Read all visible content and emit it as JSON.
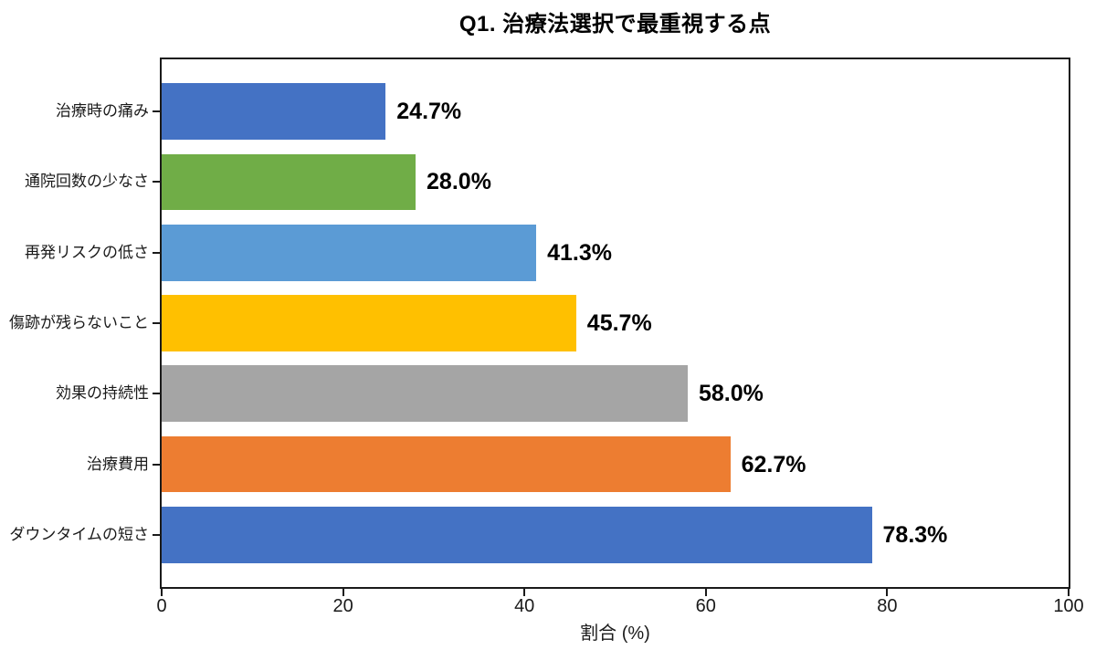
{
  "chart_data": {
    "type": "bar",
    "orientation": "horizontal",
    "title": "Q1. 治療法選択で最重視する点",
    "categories": [
      "治療時の痛み",
      "通院回数の少なさ",
      "再発リスクの低さ",
      "傷跡が残らないこと",
      "効果の持続性",
      "治療費用",
      "ダウンタイムの短さ"
    ],
    "values": [
      24.7,
      28.0,
      41.3,
      45.7,
      58.0,
      62.7,
      78.3
    ],
    "value_labels": [
      "24.7%",
      "28.0%",
      "41.3%",
      "45.7%",
      "58.0%",
      "62.7%",
      "78.3%"
    ],
    "bar_colors": [
      "#4472C4",
      "#70AD47",
      "#5B9BD5",
      "#FFC000",
      "#A5A5A5",
      "#ED7D31",
      "#4472C4"
    ],
    "xlabel": "割合 (%)",
    "xlim": [
      0,
      100
    ],
    "x_ticks": [
      "0",
      "20",
      "40",
      "60",
      "80",
      "100"
    ],
    "grid": false,
    "legend": null,
    "colors": {
      "axis": "#1a1a1a",
      "text": "#000000",
      "background": "#ffffff"
    }
  }
}
